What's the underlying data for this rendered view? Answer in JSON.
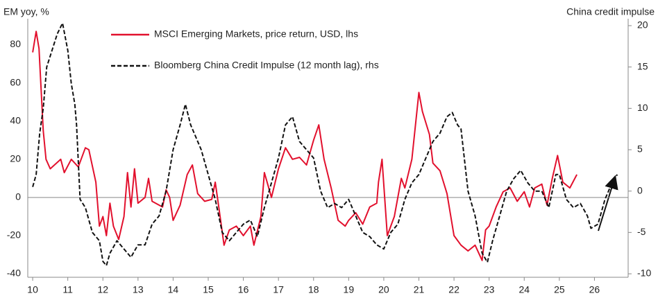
{
  "chart_data": {
    "type": "line",
    "y_label": "EM yoy, %",
    "y2_label": "China credit impulse",
    "xlim": [
      9.86,
      26.96
    ],
    "xticks": [
      10,
      11,
      12,
      13,
      14,
      15,
      16,
      17,
      18,
      19,
      20,
      21,
      22,
      23,
      24,
      25,
      26
    ],
    "ylim": [
      -40,
      90
    ],
    "yticks": [
      -40,
      -20,
      0,
      20,
      40,
      60,
      80
    ],
    "y2lim": [
      -10,
      20
    ],
    "y2ticks": [
      -10,
      -5,
      0,
      5,
      10,
      15,
      20
    ],
    "series": [
      {
        "name": "MSCI Emerging Markets, price return, USD, lhs",
        "color": "#e2102d",
        "dash": false,
        "axis": "y",
        "x": [
          10.0,
          10.1,
          10.18,
          10.3,
          10.38,
          10.5,
          10.8,
          10.9,
          11.1,
          11.3,
          11.5,
          11.6,
          11.8,
          11.9,
          12.0,
          12.1,
          12.2,
          12.3,
          12.45,
          12.6,
          12.7,
          12.8,
          12.9,
          13.0,
          13.2,
          13.3,
          13.4,
          13.7,
          13.8,
          13.9,
          14.0,
          14.2,
          14.4,
          14.55,
          14.7,
          14.9,
          15.1,
          15.2,
          15.3,
          15.45,
          15.6,
          15.8,
          16.0,
          16.2,
          16.3,
          16.5,
          16.6,
          16.8,
          17.0,
          17.2,
          17.4,
          17.6,
          17.8,
          18.0,
          18.15,
          18.3,
          18.5,
          18.7,
          18.9,
          19.0,
          19.2,
          19.4,
          19.6,
          19.8,
          19.85,
          19.95,
          20.1,
          20.3,
          20.5,
          20.6,
          20.8,
          21.0,
          21.1,
          21.3,
          21.4,
          21.6,
          21.8,
          22.0,
          22.2,
          22.4,
          22.6,
          22.8,
          22.9,
          23.0,
          23.2,
          23.4,
          23.6,
          23.8,
          24.0,
          24.15,
          24.3,
          24.5,
          24.65,
          24.8,
          24.95,
          25.1,
          25.3,
          25.5
        ],
        "values": [
          76,
          87,
          78,
          35,
          20,
          15,
          20,
          13,
          20,
          16,
          26,
          25,
          8,
          -15,
          -10,
          -20,
          -3,
          -15,
          -22,
          -10,
          13,
          -5,
          15,
          -3,
          0,
          10,
          -2,
          -5,
          4,
          0,
          -12,
          -4,
          12,
          17,
          2,
          -2,
          -1,
          8,
          -5,
          -25,
          -17,
          -15,
          -20,
          -15,
          -25,
          -10,
          13,
          0,
          15,
          26,
          20,
          21,
          17,
          30,
          38,
          20,
          5,
          -12,
          -15,
          -12,
          -8,
          -14,
          -5,
          -3,
          8,
          20,
          -20,
          -10,
          10,
          5,
          20,
          55,
          45,
          33,
          18,
          14,
          2,
          -20,
          -25,
          -28,
          -25,
          -33,
          -17,
          -15,
          -5,
          3,
          5,
          -2,
          3,
          -5,
          5,
          7,
          -4,
          10,
          22,
          8,
          5,
          12
        ]
      },
      {
        "name": "Bloomberg China Credit Impulse (12 month lag), rhs",
        "color": "#111111",
        "dash": true,
        "axis": "y2",
        "x": [
          10.0,
          10.1,
          10.2,
          10.3,
          10.4,
          10.55,
          10.7,
          10.85,
          11.0,
          11.1,
          11.2,
          11.25,
          11.35,
          11.5,
          11.7,
          11.9,
          12.0,
          12.1,
          12.2,
          12.4,
          12.6,
          12.8,
          13.0,
          13.2,
          13.4,
          13.6,
          13.8,
          14.0,
          14.2,
          14.35,
          14.5,
          14.8,
          15.0,
          15.2,
          15.4,
          15.6,
          15.8,
          16.0,
          16.2,
          16.4,
          16.6,
          16.8,
          17.0,
          17.2,
          17.4,
          17.6,
          17.8,
          18.0,
          18.2,
          18.4,
          18.6,
          18.8,
          19.0,
          19.2,
          19.4,
          19.6,
          19.8,
          20.0,
          20.2,
          20.4,
          20.6,
          20.8,
          21.0,
          21.2,
          21.4,
          21.6,
          21.8,
          21.95,
          22.1,
          22.2,
          22.4,
          22.6,
          22.8,
          22.95,
          23.1,
          23.3,
          23.5,
          23.7,
          23.9,
          24.1,
          24.3,
          24.5,
          24.7,
          24.9,
          25.0,
          25.2,
          25.4,
          25.6,
          25.8,
          25.9,
          26.1,
          26.3,
          26.4,
          26.5,
          26.65
        ],
        "values": [
          0.5,
          2,
          7,
          10,
          15,
          17,
          19,
          20.3,
          17,
          13,
          10.5,
          8,
          -1,
          -2,
          -5,
          -6,
          -8.5,
          -9,
          -7.5,
          -6,
          -7,
          -8,
          -6.5,
          -6.5,
          -4,
          -3,
          0,
          5,
          8,
          10.5,
          8,
          5,
          2,
          -1,
          -5,
          -6,
          -5,
          -4,
          -3.5,
          -5.5,
          -2,
          1,
          4,
          8,
          9,
          6,
          5,
          4,
          0,
          -2,
          -1.5,
          -2,
          -1,
          -3,
          -5,
          -5.5,
          -6.5,
          -7,
          -5,
          -4,
          -1,
          1,
          2,
          4,
          6,
          7,
          9,
          9.5,
          8,
          7.5,
          0,
          -3,
          -7.5,
          -8.6,
          -6,
          -3,
          0,
          1.5,
          2.5,
          1,
          0,
          0,
          -2,
          2,
          2,
          -1,
          -2,
          -1.5,
          -3,
          -4.5,
          -4,
          -1,
          0,
          1,
          2
        ]
      }
    ]
  }
}
